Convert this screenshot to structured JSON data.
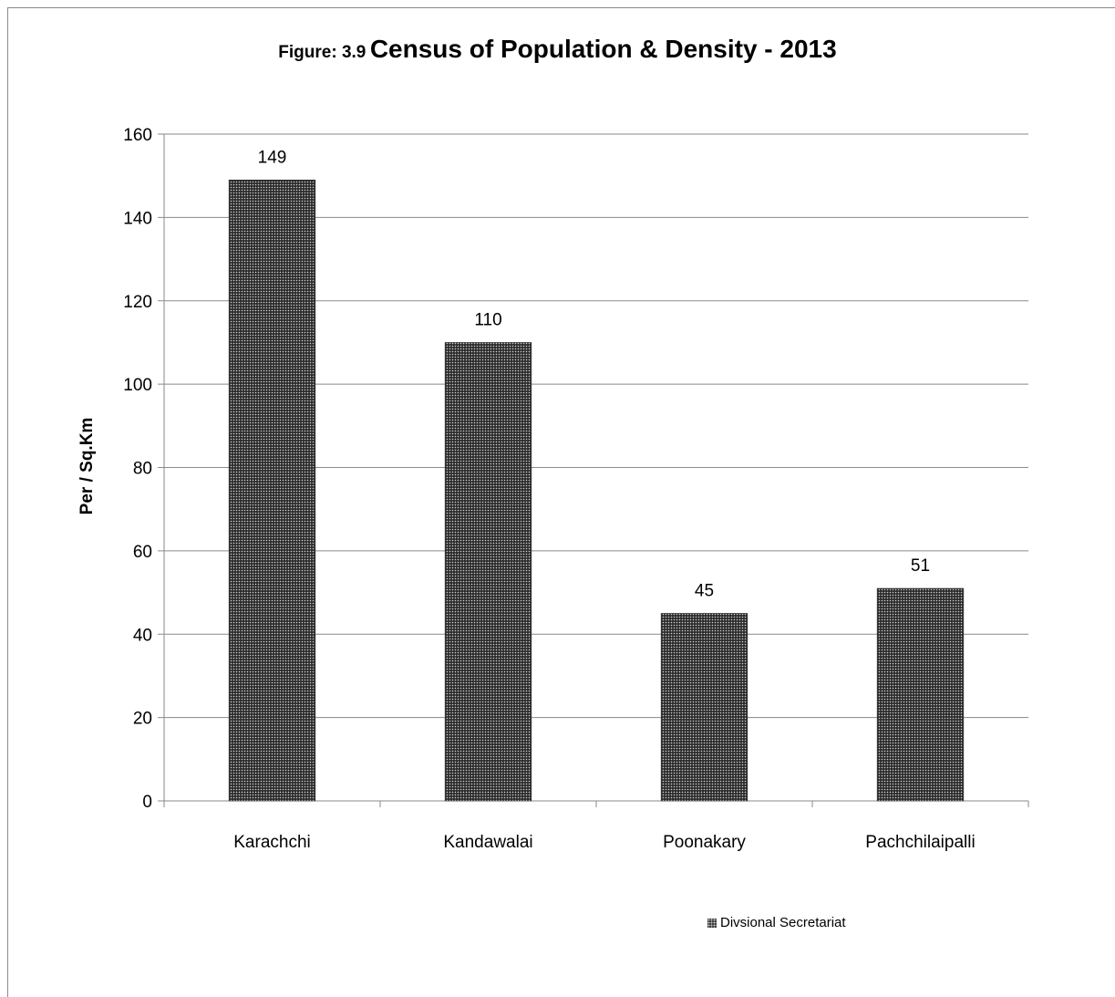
{
  "chart_data": {
    "type": "bar",
    "title_prefix": "Figure: 3.9",
    "title": "Census of Population & Density - 2013",
    "xlabel": "",
    "ylabel": "Per / Sq.Km",
    "categories": [
      "Karachchi",
      "Kandawalai",
      "Poonakary",
      "Pachchilaipalli"
    ],
    "series": [
      {
        "name": "Divsional Secretariat",
        "values": [
          149,
          110,
          45,
          51
        ]
      }
    ],
    "ylim": [
      0,
      160
    ],
    "yticks": [
      0,
      20,
      40,
      60,
      80,
      100,
      120,
      140,
      160
    ],
    "grid": true,
    "data_labels": true,
    "legend_position": "bottom-right",
    "colors": {
      "bar_base": "#2b2b2b",
      "bar_dots": "#cfcfcf",
      "grid": "#8a8a8a"
    }
  }
}
